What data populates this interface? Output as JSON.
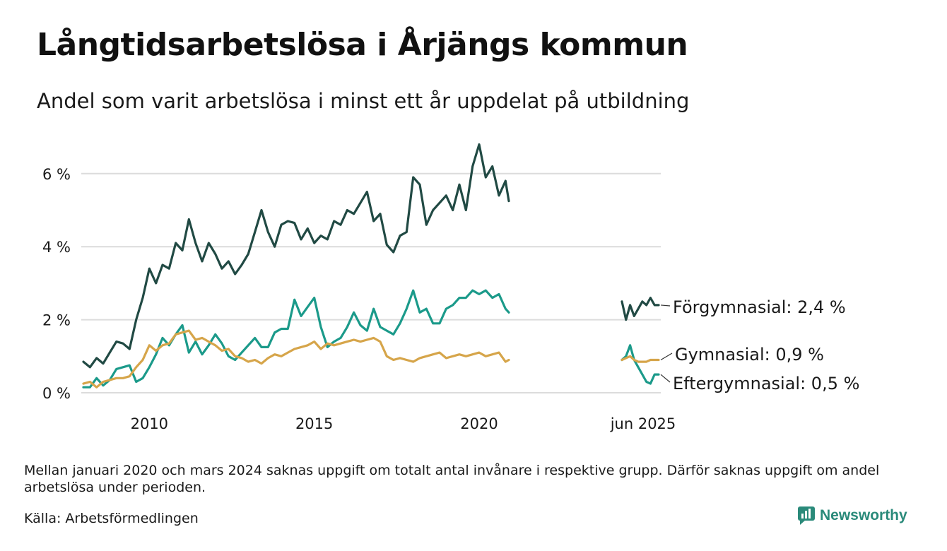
{
  "header": {
    "title": "Långtidsarbetslösa i Årjängs kommun",
    "subtitle": "Andel som varit arbetslösa i minst ett år uppdelat på utbildning"
  },
  "footer": {
    "note": "Mellan januari 2020 och mars 2024 saknas uppgift om totalt antal invånare i respektive grupp. Därför saknas uppgift om andel arbetslösa under perioden.",
    "source": "Källa: Arbetsförmedlingen",
    "brand": "Newsworthy"
  },
  "chart_data": {
    "type": "line",
    "ylim": [
      0,
      7
    ],
    "yticks": [
      0,
      2,
      4,
      6
    ],
    "ytick_labels": [
      "0 %",
      "2 %",
      "4 %",
      "6 %"
    ],
    "xticks": [
      {
        "x": 2010,
        "label": "2010"
      },
      {
        "x": 2015,
        "label": "2015"
      },
      {
        "x": 2020,
        "label": "2020"
      }
    ],
    "recent_label": "jun 2025",
    "grid": true,
    "legend": "right",
    "series": [
      {
        "name": "Förgymnasial",
        "end_label": "Förgymnasial: 2,4 %",
        "color": "#214a44",
        "x": [
          2008.0,
          2008.2,
          2008.4,
          2008.6,
          2008.8,
          2009.0,
          2009.2,
          2009.4,
          2009.6,
          2009.8,
          2010.0,
          2010.2,
          2010.4,
          2010.6,
          2010.8,
          2011.0,
          2011.2,
          2011.4,
          2011.6,
          2011.8,
          2012.0,
          2012.2,
          2012.4,
          2012.6,
          2012.8,
          2013.0,
          2013.2,
          2013.4,
          2013.6,
          2013.8,
          2014.0,
          2014.2,
          2014.4,
          2014.6,
          2014.8,
          2015.0,
          2015.2,
          2015.4,
          2015.6,
          2015.8,
          2016.0,
          2016.2,
          2016.4,
          2016.6,
          2016.8,
          2017.0,
          2017.2,
          2017.4,
          2017.6,
          2017.8,
          2018.0,
          2018.2,
          2018.4,
          2018.6,
          2018.8,
          2019.0,
          2019.2,
          2019.4,
          2019.6,
          2019.8,
          2020.0,
          2020.2,
          2020.4,
          2020.6,
          2020.8,
          2020.9
        ],
        "values": [
          0.85,
          0.7,
          0.95,
          0.8,
          1.1,
          1.4,
          1.35,
          1.2,
          2.0,
          2.6,
          3.4,
          3.0,
          3.5,
          3.4,
          4.1,
          3.9,
          4.75,
          4.1,
          3.6,
          4.1,
          3.8,
          3.4,
          3.6,
          3.25,
          3.5,
          3.8,
          4.4,
          5.0,
          4.4,
          4.0,
          4.6,
          4.7,
          4.65,
          4.2,
          4.5,
          4.1,
          4.3,
          4.2,
          4.7,
          4.6,
          5.0,
          4.9,
          5.2,
          5.5,
          4.7,
          4.9,
          4.05,
          3.85,
          4.3,
          4.4,
          5.9,
          5.7,
          4.6,
          5.0,
          5.2,
          5.4,
          5.0,
          5.7,
          5.0,
          6.2,
          6.8,
          5.9,
          6.2,
          5.4,
          5.8,
          5.25
        ]
      },
      {
        "name": "Eftergymnasial",
        "end_label": "Eftergymnasial: 0,5 %",
        "color": "#1b9a8a",
        "x": [
          2008.0,
          2008.2,
          2008.4,
          2008.6,
          2008.8,
          2009.0,
          2009.2,
          2009.4,
          2009.6,
          2009.8,
          2010.0,
          2010.2,
          2010.4,
          2010.6,
          2010.8,
          2011.0,
          2011.2,
          2011.4,
          2011.6,
          2011.8,
          2012.0,
          2012.2,
          2012.4,
          2012.6,
          2012.8,
          2013.0,
          2013.2,
          2013.4,
          2013.6,
          2013.8,
          2014.0,
          2014.2,
          2014.4,
          2014.6,
          2014.8,
          2015.0,
          2015.2,
          2015.4,
          2015.6,
          2015.8,
          2016.0,
          2016.2,
          2016.4,
          2016.6,
          2016.8,
          2017.0,
          2017.2,
          2017.4,
          2017.6,
          2017.8,
          2018.0,
          2018.2,
          2018.4,
          2018.6,
          2018.8,
          2019.0,
          2019.2,
          2019.4,
          2019.6,
          2019.8,
          2020.0,
          2020.2,
          2020.4,
          2020.6,
          2020.8,
          2020.9
        ],
        "values": [
          0.15,
          0.15,
          0.4,
          0.2,
          0.35,
          0.65,
          0.7,
          0.75,
          0.3,
          0.4,
          0.7,
          1.05,
          1.5,
          1.3,
          1.6,
          1.85,
          1.1,
          1.4,
          1.05,
          1.3,
          1.6,
          1.35,
          1.0,
          0.9,
          1.1,
          1.3,
          1.5,
          1.25,
          1.25,
          1.65,
          1.75,
          1.75,
          2.55,
          2.1,
          2.35,
          2.6,
          1.8,
          1.25,
          1.4,
          1.5,
          1.8,
          2.2,
          1.85,
          1.7,
          2.3,
          1.8,
          1.7,
          1.6,
          1.9,
          2.3,
          2.8,
          2.2,
          2.3,
          1.9,
          1.9,
          2.3,
          2.4,
          2.6,
          2.6,
          2.8,
          2.7,
          2.8,
          2.6,
          2.7,
          2.3,
          2.2
        ]
      },
      {
        "name": "Gymnasial",
        "end_label": "Gymnasial: 0,9 %",
        "color": "#d6a54a",
        "x": [
          2008.0,
          2008.2,
          2008.4,
          2008.6,
          2008.8,
          2009.0,
          2009.2,
          2009.4,
          2009.6,
          2009.8,
          2010.0,
          2010.2,
          2010.4,
          2010.6,
          2010.8,
          2011.0,
          2011.2,
          2011.4,
          2011.6,
          2011.8,
          2012.0,
          2012.2,
          2012.4,
          2012.6,
          2012.8,
          2013.0,
          2013.2,
          2013.4,
          2013.6,
          2013.8,
          2014.0,
          2014.2,
          2014.4,
          2014.6,
          2014.8,
          2015.0,
          2015.2,
          2015.4,
          2015.6,
          2015.8,
          2016.0,
          2016.2,
          2016.4,
          2016.6,
          2016.8,
          2017.0,
          2017.2,
          2017.4,
          2017.6,
          2017.8,
          2018.0,
          2018.2,
          2018.4,
          2018.6,
          2018.8,
          2019.0,
          2019.2,
          2019.4,
          2019.6,
          2019.8,
          2020.0,
          2020.2,
          2020.4,
          2020.6,
          2020.8,
          2020.9
        ],
        "values": [
          0.25,
          0.3,
          0.15,
          0.3,
          0.35,
          0.4,
          0.4,
          0.45,
          0.7,
          0.9,
          1.3,
          1.15,
          1.3,
          1.35,
          1.6,
          1.65,
          1.7,
          1.45,
          1.5,
          1.4,
          1.3,
          1.15,
          1.2,
          1.0,
          0.95,
          0.85,
          0.9,
          0.8,
          0.95,
          1.05,
          1.0,
          1.1,
          1.2,
          1.25,
          1.3,
          1.4,
          1.2,
          1.35,
          1.3,
          1.35,
          1.4,
          1.45,
          1.4,
          1.45,
          1.5,
          1.4,
          1.0,
          0.9,
          0.95,
          0.9,
          0.85,
          0.95,
          1.0,
          1.05,
          1.1,
          0.95,
          1.0,
          1.05,
          1.0,
          1.05,
          1.1,
          1.0,
          1.05,
          1.1,
          0.85,
          0.9
        ]
      }
    ],
    "recent_series": [
      {
        "name": "Förgymnasial",
        "values": [
          2.5,
          2.0,
          2.4,
          2.1,
          2.3,
          2.5,
          2.4,
          2.6,
          2.4,
          2.4
        ]
      },
      {
        "name": "Eftergymnasial",
        "values": [
          0.9,
          1.0,
          1.3,
          0.9,
          0.7,
          0.5,
          0.3,
          0.25,
          0.5,
          0.5
        ]
      },
      {
        "name": "Gymnasial",
        "values": [
          0.9,
          0.95,
          1.0,
          0.9,
          0.85,
          0.85,
          0.85,
          0.9,
          0.9,
          0.9
        ]
      }
    ]
  }
}
